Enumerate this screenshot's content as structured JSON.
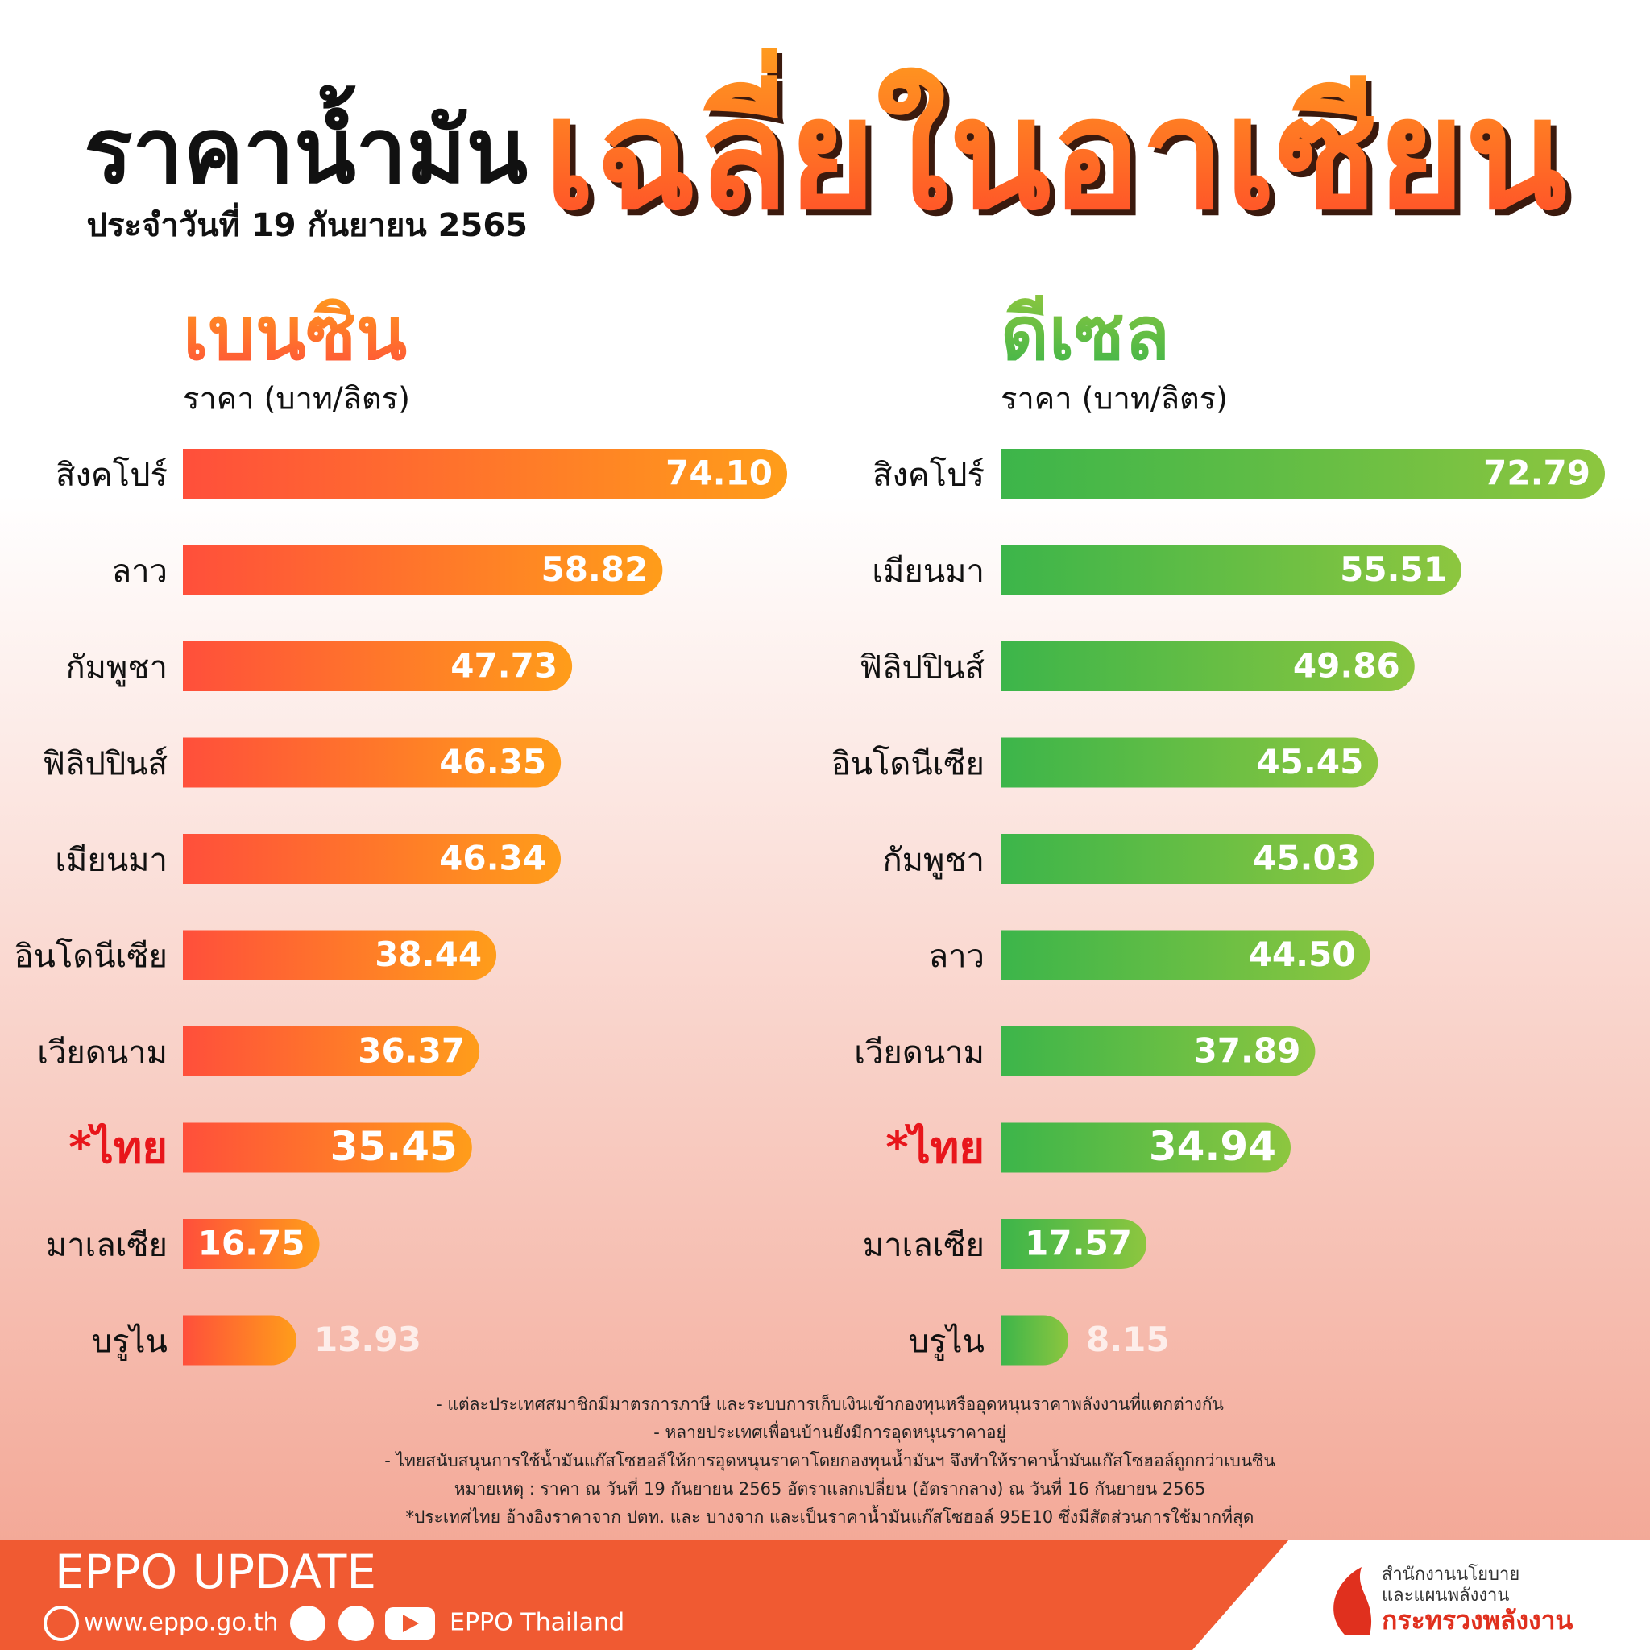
{
  "header": {
    "title": "ราคาน้ำมัน",
    "title_highlight": "เฉลี่ยในอาเซียน",
    "subtitle": "ประจำวันที่ 19 กันยายน 2565"
  },
  "chart_data": [
    {
      "type": "bar",
      "orientation": "horizontal",
      "title": "เบนซิน",
      "axis_label": "ราคา (บาท/ลิตร)",
      "categories": [
        "สิงคโปร์",
        "ลาว",
        "กัมพูชา",
        "ฟิลิปปินส์",
        "เมียนมา",
        "อินโดนีเซีย",
        "เวียดนาม",
        "*ไทย",
        "มาเลเซีย",
        "บรูไน"
      ],
      "values": [
        74.1,
        58.82,
        47.73,
        46.35,
        46.34,
        38.44,
        36.37,
        35.45,
        16.75,
        13.93
      ],
      "value_labels": [
        "74.10",
        "58.82",
        "47.73",
        "46.35",
        "46.34",
        "38.44",
        "36.37",
        "35.45",
        "16.75",
        "13.93"
      ],
      "color": "#ff4f3b",
      "color_end": "#ff9d1a",
      "highlight_category": 7
    },
    {
      "type": "bar",
      "orientation": "horizontal",
      "title": "ดีเซล",
      "axis_label": "ราคา (บาท/ลิตร)",
      "categories": [
        "สิงคโปร์",
        "เมียนมา",
        "ฟิลิปปินส์",
        "อินโดนีเซีย",
        "กัมพูชา",
        "ลาว",
        "เวียดนาม",
        "*ไทย",
        "มาเลเซีย",
        "บรูไน"
      ],
      "values": [
        72.79,
        55.51,
        49.86,
        45.45,
        45.03,
        44.5,
        37.89,
        34.94,
        17.57,
        8.15
      ],
      "value_labels": [
        "72.79",
        "55.51",
        "49.86",
        "45.45",
        "45.03",
        "44.50",
        "37.89",
        "34.94",
        "17.57",
        "8.15"
      ],
      "color": "#3cb54a",
      "color_end": "#8dc63f",
      "highlight_category": 7
    }
  ],
  "notes": [
    "- แต่ละประเทศสมาชิกมีมาตรการภาษี และระบบการเก็บเงินเข้ากองทุนหรืออุดหนุนราคาพลังงานที่แตกต่างกัน",
    "- หลายประเทศเพื่อนบ้านยังมีการอุดหนุนราคาอยู่",
    "- ไทยสนับสนุนการใช้น้ำมันแก๊สโซฮอล์ให้การอุดหนุนราคาโดยกองทุนน้ำมันฯ จึงทำให้ราคาน้ำมันแก๊สโซฮอล์ถูกกว่าเบนซิน",
    "หมายเหตุ :  ราคา ณ วันที่ 19 กันยายน 2565 อัตราแลกเปลี่ยน (อัตรากลาง) ณ วันที่ 16 กันยายน 2565",
    "*ประเทศไทย อ้างอิงราคาจาก ปตท. และ บางจาก และเป็นราคาน้ำมันแก๊สโซฮอล์ 95E10 ซึ่งมีสัดส่วนการใช้มากที่สุด"
  ],
  "footer": {
    "brand": "EPPO UPDATE",
    "website": "www.eppo.go.th",
    "social": "EPPO Thailand",
    "org_lines": [
      "สำนักงานนโยบาย",
      "และแผนพลังงาน",
      "กระทรวงพลังงาน"
    ]
  }
}
